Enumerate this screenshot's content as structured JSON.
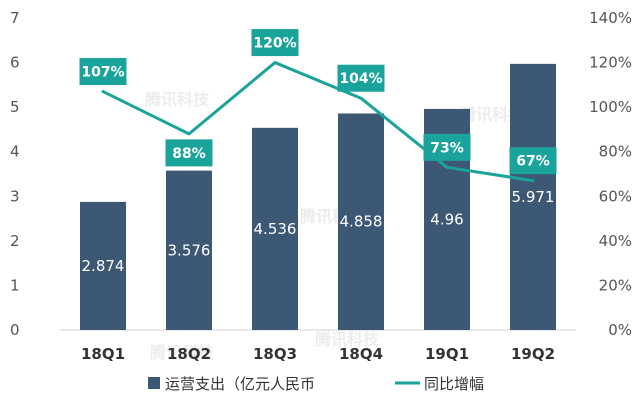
{
  "chart_data": {
    "type": "bar+line",
    "categories": [
      "18Q1",
      "18Q2",
      "18Q3",
      "18Q4",
      "19Q1",
      "19Q2"
    ],
    "series": [
      {
        "name": "运营支出（亿元人民币）",
        "type": "bar",
        "axis": "left",
        "values": [
          2.874,
          3.576,
          4.536,
          4.858,
          4.96,
          5.971
        ],
        "labels": [
          "2.874",
          "3.576",
          "4.536",
          "4.858",
          "4.96",
          "5.971"
        ],
        "color": "#3d5874"
      },
      {
        "name": "同比增幅",
        "type": "line",
        "axis": "right",
        "values": [
          107,
          88,
          120,
          104,
          73,
          67
        ],
        "labels": [
          "107%",
          "88%",
          "120%",
          "104%",
          "73%",
          "67%"
        ],
        "color": "#1aa39a"
      }
    ],
    "left_axis": {
      "min": 0,
      "max": 7,
      "ticks": [
        "0",
        "1",
        "2",
        "3",
        "4",
        "5",
        "6",
        "7"
      ]
    },
    "right_axis": {
      "min": 0,
      "max": 140,
      "ticks": [
        "0%",
        "20%",
        "40%",
        "60%",
        "80%",
        "100%",
        "120%",
        "140%"
      ]
    },
    "legend": {
      "position": "bottom",
      "items": [
        "运营支出（亿元人民币",
        "同比增幅"
      ]
    },
    "grid": false,
    "watermark": "腾讯科技"
  }
}
